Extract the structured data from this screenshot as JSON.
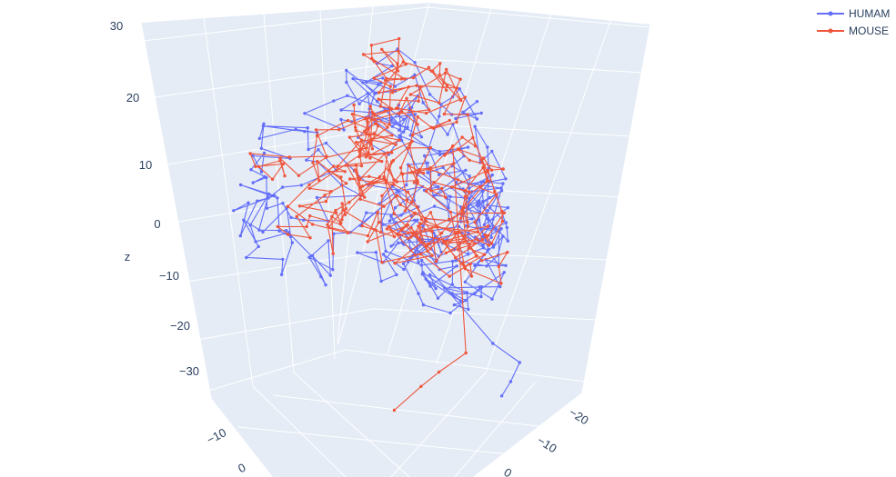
{
  "chart_data": {
    "type": "line3d",
    "legend_position": "top-right",
    "scene_background": "#e5ecf6",
    "grid_color": "#ffffff",
    "axes": {
      "z": {
        "title": "z",
        "ticks": [
          "30",
          "20",
          "10",
          "0",
          "−10",
          "−20",
          "−30"
        ],
        "range": [
          -35,
          30
        ]
      },
      "x": {
        "title": "",
        "ticks": [
          "−10",
          "0"
        ]
      },
      "y": {
        "title": "",
        "ticks": [
          "−20",
          "−10",
          "0"
        ]
      }
    },
    "series": [
      {
        "name": "HUMAM",
        "color": "#636efa",
        "seed": 7,
        "tail": [
          [
            0.55,
            0.72
          ],
          [
            0.58,
            0.76
          ],
          [
            0.57,
            0.8
          ],
          [
            0.56,
            0.83
          ]
        ]
      },
      {
        "name": "MOUSE",
        "color": "#ef553b",
        "seed": 13,
        "tail": [
          [
            0.52,
            0.74
          ],
          [
            0.49,
            0.78
          ],
          [
            0.47,
            0.81
          ],
          [
            0.44,
            0.86
          ]
        ]
      }
    ]
  }
}
